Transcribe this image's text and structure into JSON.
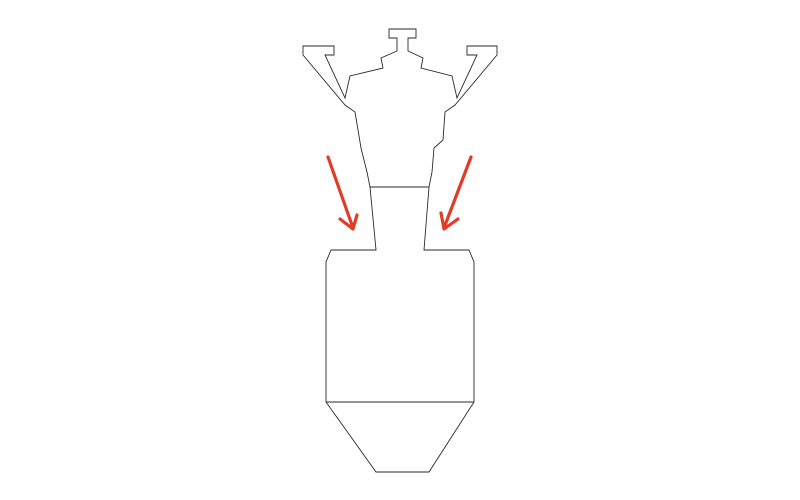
{
  "diagram": {
    "colors": {
      "outline": "#2a2a2a",
      "arrow": "#e03c28",
      "background": "#ffffff"
    },
    "parts": [
      "top-fitting",
      "lower-container"
    ],
    "arrow_direction": "down"
  }
}
